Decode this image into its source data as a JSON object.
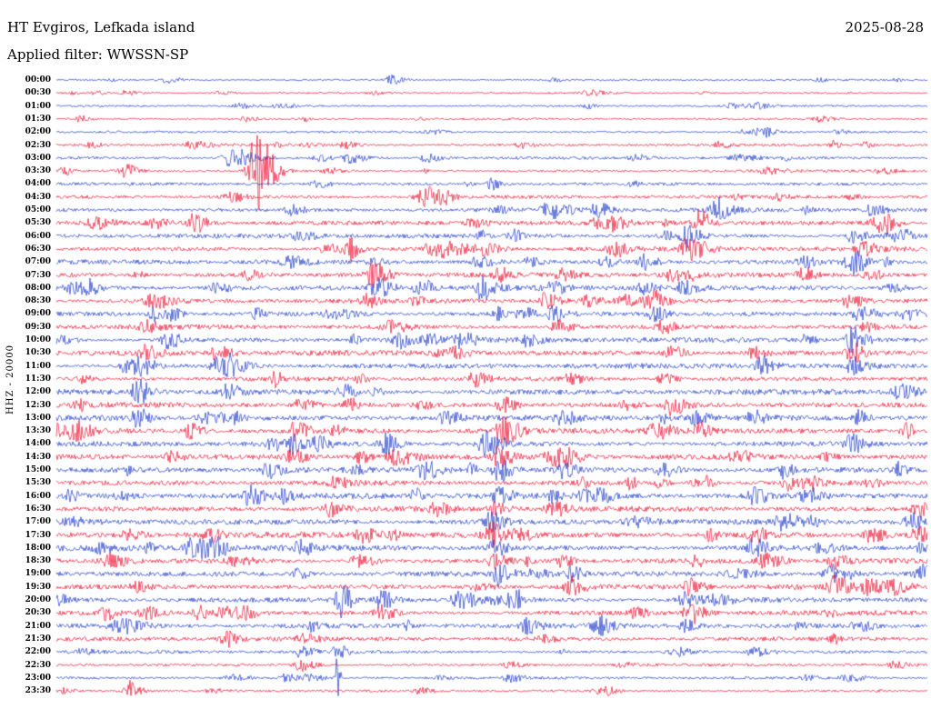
{
  "header": {
    "station": "HT Evgiros, Lefkada island",
    "date": "2025-08-28",
    "filter": "Applied filter: WWSSN-SP"
  },
  "axis": {
    "left_label": "HHZ - 20000"
  },
  "chart_data": {
    "type": "line",
    "subtype": "helicorder-seismogram",
    "title": "HT Evgiros, Lefkada island",
    "date": "2025-08-28",
    "filter": "WWSSN-SP",
    "channel": "HHZ",
    "scale_label": "20000",
    "row_interval_minutes": 30,
    "legend": "alternating blue/red traces, one 30-minute segment per row",
    "colors": {
      "blue": "#1c39cb",
      "red": "#ef0f2f"
    },
    "rows": [
      {
        "t": "00:00",
        "c": "blue",
        "n": 0.7
      },
      {
        "t": "00:30",
        "c": "red",
        "n": 0.7
      },
      {
        "t": "01:00",
        "c": "blue",
        "n": 0.7
      },
      {
        "t": "01:30",
        "c": "red",
        "n": 0.8
      },
      {
        "t": "02:00",
        "c": "blue",
        "n": 0.8
      },
      {
        "t": "02:30",
        "c": "red",
        "n": 0.9
      },
      {
        "t": "03:00",
        "c": "blue",
        "n": 1.0
      },
      {
        "t": "03:30",
        "c": "red",
        "n": 1.0
      },
      {
        "t": "04:00",
        "c": "blue",
        "n": 1.1
      },
      {
        "t": "04:30",
        "c": "red",
        "n": 1.2
      },
      {
        "t": "05:00",
        "c": "blue",
        "n": 1.5
      },
      {
        "t": "05:30",
        "c": "red",
        "n": 1.6
      },
      {
        "t": "06:00",
        "c": "blue",
        "n": 1.6
      },
      {
        "t": "06:30",
        "c": "red",
        "n": 1.7
      },
      {
        "t": "07:00",
        "c": "blue",
        "n": 1.6
      },
      {
        "t": "07:30",
        "c": "red",
        "n": 1.7
      },
      {
        "t": "08:00",
        "c": "blue",
        "n": 1.8
      },
      {
        "t": "08:30",
        "c": "red",
        "n": 1.8
      },
      {
        "t": "09:00",
        "c": "blue",
        "n": 1.8
      },
      {
        "t": "09:30",
        "c": "red",
        "n": 1.7
      },
      {
        "t": "10:00",
        "c": "blue",
        "n": 1.8
      },
      {
        "t": "10:30",
        "c": "red",
        "n": 1.8
      },
      {
        "t": "11:00",
        "c": "blue",
        "n": 1.9
      },
      {
        "t": "11:30",
        "c": "red",
        "n": 1.7
      },
      {
        "t": "12:00",
        "c": "blue",
        "n": 1.9
      },
      {
        "t": "12:30",
        "c": "red",
        "n": 1.9
      },
      {
        "t": "13:00",
        "c": "blue",
        "n": 2.0
      },
      {
        "t": "13:30",
        "c": "red",
        "n": 2.0
      },
      {
        "t": "14:00",
        "c": "blue",
        "n": 2.0
      },
      {
        "t": "14:30",
        "c": "red",
        "n": 2.0
      },
      {
        "t": "15:00",
        "c": "blue",
        "n": 2.0
      },
      {
        "t": "15:30",
        "c": "red",
        "n": 1.9
      },
      {
        "t": "16:00",
        "c": "blue",
        "n": 2.1
      },
      {
        "t": "16:30",
        "c": "red",
        "n": 2.0
      },
      {
        "t": "17:00",
        "c": "blue",
        "n": 2.0
      },
      {
        "t": "17:30",
        "c": "red",
        "n": 2.1
      },
      {
        "t": "18:00",
        "c": "blue",
        "n": 2.1
      },
      {
        "t": "18:30",
        "c": "red",
        "n": 1.9
      },
      {
        "t": "19:00",
        "c": "blue",
        "n": 2.0
      },
      {
        "t": "19:30",
        "c": "red",
        "n": 1.9
      },
      {
        "t": "20:00",
        "c": "blue",
        "n": 1.8
      },
      {
        "t": "20:30",
        "c": "red",
        "n": 1.8
      },
      {
        "t": "21:00",
        "c": "blue",
        "n": 1.7
      },
      {
        "t": "21:30",
        "c": "red",
        "n": 1.5
      },
      {
        "t": "22:00",
        "c": "blue",
        "n": 1.2
      },
      {
        "t": "22:30",
        "c": "red",
        "n": 1.1
      },
      {
        "t": "23:00",
        "c": "blue",
        "n": 1.0
      },
      {
        "t": "23:30",
        "c": "red",
        "n": 0.9
      }
    ],
    "events": [
      {
        "r": 0,
        "x": 0.128,
        "a": 3,
        "w": 8
      },
      {
        "r": 0,
        "x": 0.57,
        "a": 2,
        "w": 6
      },
      {
        "r": 1,
        "x": 0.045,
        "a": 2,
        "w": 5
      },
      {
        "r": 2,
        "x": 0.805,
        "a": 3,
        "w": 8
      },
      {
        "r": 3,
        "x": 0.217,
        "a": 3.5,
        "w": 6
      },
      {
        "r": 4,
        "x": 0.79,
        "a": 2.5,
        "w": 7
      },
      {
        "r": 5,
        "x": 0.04,
        "a": 3,
        "w": 6
      },
      {
        "r": 5,
        "x": 0.33,
        "a": 4,
        "w": 8
      },
      {
        "r": 5,
        "x": 0.534,
        "a": 3,
        "w": 7
      },
      {
        "r": 6,
        "x": 0.198,
        "a": 8,
        "w": 9
      },
      {
        "r": 6,
        "x": 0.336,
        "a": 6,
        "w": 9
      },
      {
        "r": 6,
        "x": 0.425,
        "a": 4.5,
        "w": 8
      },
      {
        "r": 7,
        "x": 0.078,
        "a": 8,
        "w": 7
      },
      {
        "r": 7,
        "x": 0.23,
        "a": 46,
        "w": 10
      },
      {
        "r": 7,
        "x": 0.313,
        "a": 4,
        "w": 7
      },
      {
        "r": 8,
        "x": 0.3,
        "a": 3.5,
        "w": 8
      },
      {
        "r": 8,
        "x": 0.5,
        "a": 3,
        "w": 7
      },
      {
        "r": 8,
        "x": 0.66,
        "a": 3,
        "w": 6
      },
      {
        "r": 9,
        "x": 0.425,
        "a": 6,
        "w": 8
      },
      {
        "r": 9,
        "x": 0.446,
        "a": 7,
        "w": 6
      },
      {
        "r": 9,
        "x": 0.83,
        "a": 4,
        "w": 8
      },
      {
        "r": 10,
        "x": 0.27,
        "a": 5,
        "w": 8
      },
      {
        "r": 10,
        "x": 0.565,
        "a": 10,
        "w": 8
      },
      {
        "r": 10,
        "x": 0.62,
        "a": 8,
        "w": 9
      },
      {
        "r": 10,
        "x": 0.758,
        "a": 12,
        "w": 8
      },
      {
        "r": 10,
        "x": 0.935,
        "a": 6,
        "w": 8
      },
      {
        "r": 11,
        "x": 0.16,
        "a": 8,
        "w": 8
      },
      {
        "r": 11,
        "x": 0.477,
        "a": 7,
        "w": 8
      },
      {
        "r": 11,
        "x": 0.62,
        "a": 6,
        "w": 8
      },
      {
        "r": 11,
        "x": 0.737,
        "a": 14,
        "w": 8
      },
      {
        "r": 11,
        "x": 0.95,
        "a": 8,
        "w": 8
      },
      {
        "r": 12,
        "x": 0.28,
        "a": 6,
        "w": 8
      },
      {
        "r": 12,
        "x": 0.724,
        "a": 12,
        "w": 8
      },
      {
        "r": 12,
        "x": 0.914,
        "a": 7,
        "w": 8
      },
      {
        "r": 12,
        "x": 0.97,
        "a": 6,
        "w": 7
      },
      {
        "r": 13,
        "x": 0.336,
        "a": 8,
        "w": 8
      },
      {
        "r": 13,
        "x": 0.446,
        "a": 6,
        "w": 8
      },
      {
        "r": 13,
        "x": 0.64,
        "a": 8,
        "w": 8
      },
      {
        "r": 13,
        "x": 0.727,
        "a": 16,
        "w": 9
      },
      {
        "r": 13,
        "x": 0.925,
        "a": 8,
        "w": 8
      },
      {
        "r": 14,
        "x": 0.54,
        "a": 5,
        "w": 8
      },
      {
        "r": 14,
        "x": 0.675,
        "a": 8,
        "w": 8
      },
      {
        "r": 14,
        "x": 0.857,
        "a": 6,
        "w": 8
      },
      {
        "r": 14,
        "x": 0.914,
        "a": 8,
        "w": 8
      },
      {
        "r": 15,
        "x": 0.363,
        "a": 14,
        "w": 9
      },
      {
        "r": 15,
        "x": 0.58,
        "a": 6,
        "w": 8
      },
      {
        "r": 15,
        "x": 0.857,
        "a": 7,
        "w": 8
      },
      {
        "r": 16,
        "x": 0.368,
        "a": 12,
        "w": 9
      },
      {
        "r": 16,
        "x": 0.415,
        "a": 6,
        "w": 7
      },
      {
        "r": 16,
        "x": 0.493,
        "a": 7,
        "w": 8
      },
      {
        "r": 16,
        "x": 0.57,
        "a": 6,
        "w": 8
      },
      {
        "r": 16,
        "x": 0.675,
        "a": 7,
        "w": 8
      },
      {
        "r": 16,
        "x": 0.72,
        "a": 8,
        "w": 8
      },
      {
        "r": 17,
        "x": 0.107,
        "a": 7,
        "w": 8
      },
      {
        "r": 17,
        "x": 0.56,
        "a": 8,
        "w": 8
      },
      {
        "r": 17,
        "x": 0.685,
        "a": 10,
        "w": 8
      },
      {
        "r": 17,
        "x": 0.91,
        "a": 6,
        "w": 8
      },
      {
        "r": 18,
        "x": 0.112,
        "a": 8,
        "w": 7
      },
      {
        "r": 18,
        "x": 0.133,
        "a": 7,
        "w": 6
      },
      {
        "r": 18,
        "x": 0.534,
        "a": 6,
        "w": 8
      },
      {
        "r": 18,
        "x": 0.57,
        "a": 7,
        "w": 8
      },
      {
        "r": 18,
        "x": 0.685,
        "a": 8,
        "w": 8
      },
      {
        "r": 19,
        "x": 0.102,
        "a": 6,
        "w": 8
      },
      {
        "r": 19,
        "x": 0.576,
        "a": 8,
        "w": 8
      },
      {
        "r": 19,
        "x": 0.696,
        "a": 7,
        "w": 8
      },
      {
        "r": 20,
        "x": 0.128,
        "a": 9,
        "w": 8
      },
      {
        "r": 20,
        "x": 0.394,
        "a": 8,
        "w": 8
      },
      {
        "r": 20,
        "x": 0.425,
        "a": 7,
        "w": 7
      },
      {
        "r": 20,
        "x": 0.54,
        "a": 6,
        "w": 8
      },
      {
        "r": 20,
        "x": 0.914,
        "a": 14,
        "w": 8
      },
      {
        "r": 21,
        "x": 0.102,
        "a": 7,
        "w": 8
      },
      {
        "r": 21,
        "x": 0.185,
        "a": 8,
        "w": 8
      },
      {
        "r": 21,
        "x": 0.706,
        "a": 7,
        "w": 8
      },
      {
        "r": 21,
        "x": 0.8,
        "a": 6,
        "w": 8
      },
      {
        "r": 21,
        "x": 0.914,
        "a": 10,
        "w": 8
      },
      {
        "r": 22,
        "x": 0.097,
        "a": 12,
        "w": 8
      },
      {
        "r": 22,
        "x": 0.185,
        "a": 10,
        "w": 8
      },
      {
        "r": 22,
        "x": 0.81,
        "a": 10,
        "w": 8
      },
      {
        "r": 22,
        "x": 0.914,
        "a": 8,
        "w": 8
      },
      {
        "r": 23,
        "x": 0.029,
        "a": 4,
        "w": 6
      },
      {
        "r": 23,
        "x": 0.59,
        "a": 6,
        "w": 8
      },
      {
        "r": 23,
        "x": 0.696,
        "a": 5,
        "w": 8
      },
      {
        "r": 24,
        "x": 0.092,
        "a": 14,
        "w": 8
      },
      {
        "r": 24,
        "x": 0.196,
        "a": 8,
        "w": 8
      },
      {
        "r": 24,
        "x": 0.33,
        "a": 7,
        "w": 8
      },
      {
        "r": 25,
        "x": 0.024,
        "a": 6,
        "w": 6
      },
      {
        "r": 25,
        "x": 0.28,
        "a": 6,
        "w": 8
      },
      {
        "r": 25,
        "x": 0.513,
        "a": 8,
        "w": 8
      },
      {
        "r": 25,
        "x": 0.706,
        "a": 10,
        "w": 8
      },
      {
        "r": 26,
        "x": 0.092,
        "a": 10,
        "w": 8
      },
      {
        "r": 26,
        "x": 0.446,
        "a": 8,
        "w": 8
      },
      {
        "r": 26,
        "x": 0.58,
        "a": 7,
        "w": 8
      },
      {
        "r": 26,
        "x": 0.732,
        "a": 6,
        "w": 8
      },
      {
        "r": 27,
        "x": 0.154,
        "a": 8,
        "w": 8
      },
      {
        "r": 27,
        "x": 0.274,
        "a": 10,
        "w": 8
      },
      {
        "r": 27,
        "x": 0.513,
        "a": 14,
        "w": 9
      },
      {
        "r": 27,
        "x": 0.737,
        "a": 8,
        "w": 8
      },
      {
        "r": 28,
        "x": 0.269,
        "a": 10,
        "w": 8
      },
      {
        "r": 28,
        "x": 0.3,
        "a": 8,
        "w": 7
      },
      {
        "r": 28,
        "x": 0.498,
        "a": 6,
        "w": 8
      },
      {
        "r": 29,
        "x": 0.269,
        "a": 8,
        "w": 8
      },
      {
        "r": 29,
        "x": 0.508,
        "a": 10,
        "w": 8
      },
      {
        "r": 29,
        "x": 0.78,
        "a": 8,
        "w": 8
      },
      {
        "r": 29,
        "x": 0.883,
        "a": 4,
        "w": 7
      },
      {
        "r": 30,
        "x": 0.243,
        "a": 8,
        "w": 8
      },
      {
        "r": 30,
        "x": 0.508,
        "a": 12,
        "w": 8
      },
      {
        "r": 30,
        "x": 0.58,
        "a": 8,
        "w": 8
      },
      {
        "r": 30,
        "x": 0.696,
        "a": 7,
        "w": 8
      },
      {
        "r": 31,
        "x": 0.32,
        "a": 6,
        "w": 8
      },
      {
        "r": 31,
        "x": 0.862,
        "a": 8,
        "w": 8
      },
      {
        "r": 31,
        "x": 0.935,
        "a": 5,
        "w": 7
      },
      {
        "r": 32,
        "x": 0.222,
        "a": 10,
        "w": 8
      },
      {
        "r": 32,
        "x": 0.258,
        "a": 7,
        "w": 7
      },
      {
        "r": 32,
        "x": 0.508,
        "a": 8,
        "w": 8
      },
      {
        "r": 32,
        "x": 0.623,
        "a": 7,
        "w": 8
      },
      {
        "r": 32,
        "x": 0.8,
        "a": 10,
        "w": 8
      },
      {
        "r": 32,
        "x": 0.862,
        "a": 8,
        "w": 8
      },
      {
        "r": 33,
        "x": 0.315,
        "a": 8,
        "w": 8
      },
      {
        "r": 33,
        "x": 0.503,
        "a": 7,
        "w": 8
      },
      {
        "r": 33,
        "x": 0.57,
        "a": 8,
        "w": 8
      },
      {
        "r": 34,
        "x": 0.498,
        "a": 10,
        "w": 8
      },
      {
        "r": 34,
        "x": 0.84,
        "a": 8,
        "w": 8
      },
      {
        "r": 34,
        "x": 0.982,
        "a": 10,
        "w": 8
      },
      {
        "r": 35,
        "x": 0.175,
        "a": 6,
        "w": 8
      },
      {
        "r": 35,
        "x": 0.498,
        "a": 12,
        "w": 8
      },
      {
        "r": 35,
        "x": 0.8,
        "a": 10,
        "w": 8
      },
      {
        "r": 35,
        "x": 0.935,
        "a": 8,
        "w": 8
      },
      {
        "r": 35,
        "x": 0.988,
        "a": 8,
        "w": 7
      },
      {
        "r": 36,
        "x": 0.05,
        "a": 5,
        "w": 7
      },
      {
        "r": 36,
        "x": 0.154,
        "a": 10,
        "w": 8
      },
      {
        "r": 36,
        "x": 0.185,
        "a": 8,
        "w": 7
      },
      {
        "r": 36,
        "x": 0.28,
        "a": 7,
        "w": 8
      },
      {
        "r": 36,
        "x": 0.503,
        "a": 8,
        "w": 8
      },
      {
        "r": 36,
        "x": 0.8,
        "a": 10,
        "w": 8
      },
      {
        "r": 36,
        "x": 0.878,
        "a": 6,
        "w": 8
      },
      {
        "r": 37,
        "x": 0.503,
        "a": 8,
        "w": 8
      },
      {
        "r": 37,
        "x": 0.58,
        "a": 6,
        "w": 8
      },
      {
        "r": 37,
        "x": 0.893,
        "a": 8,
        "w": 8
      },
      {
        "r": 38,
        "x": 0.508,
        "a": 12,
        "w": 8
      },
      {
        "r": 38,
        "x": 0.59,
        "a": 8,
        "w": 8
      },
      {
        "r": 38,
        "x": 0.888,
        "a": 10,
        "w": 8
      },
      {
        "r": 39,
        "x": 0.092,
        "a": 5,
        "w": 7
      },
      {
        "r": 39,
        "x": 0.59,
        "a": 10,
        "w": 8
      },
      {
        "r": 39,
        "x": 0.727,
        "a": 8,
        "w": 8
      },
      {
        "r": 39,
        "x": 0.893,
        "a": 10,
        "w": 8
      },
      {
        "r": 40,
        "x": 0.326,
        "a": 18,
        "w": 6
      },
      {
        "r": 40,
        "x": 0.373,
        "a": 10,
        "w": 8
      },
      {
        "r": 40,
        "x": 0.52,
        "a": 6,
        "w": 8
      },
      {
        "r": 40,
        "x": 0.72,
        "a": 8,
        "w": 8
      },
      {
        "r": 41,
        "x": 0.102,
        "a": 6,
        "w": 8
      },
      {
        "r": 41,
        "x": 0.19,
        "a": 7,
        "w": 8
      },
      {
        "r": 41,
        "x": 0.373,
        "a": 8,
        "w": 8
      },
      {
        "r": 41,
        "x": 0.732,
        "a": 10,
        "w": 8
      },
      {
        "r": 42,
        "x": 0.54,
        "a": 8,
        "w": 8
      },
      {
        "r": 42,
        "x": 0.623,
        "a": 10,
        "w": 8
      },
      {
        "r": 42,
        "x": 0.72,
        "a": 6,
        "w": 8
      },
      {
        "r": 43,
        "x": 0.196,
        "a": 8,
        "w": 8
      },
      {
        "r": 43,
        "x": 0.56,
        "a": 4,
        "w": 7
      },
      {
        "r": 44,
        "x": 0.03,
        "a": 4,
        "w": 6
      },
      {
        "r": 44,
        "x": 0.28,
        "a": 6,
        "w": 8
      },
      {
        "r": 44,
        "x": 0.322,
        "a": 8,
        "w": 6
      },
      {
        "r": 45,
        "x": 0.28,
        "a": 8,
        "w": 8
      },
      {
        "r": 45,
        "x": 0.52,
        "a": 4,
        "w": 7
      },
      {
        "r": 46,
        "x": 0.322,
        "a": 28,
        "w": 1.8
      },
      {
        "r": 46,
        "x": 0.52,
        "a": 5,
        "w": 7
      },
      {
        "r": 47,
        "x": 0.084,
        "a": 12,
        "w": 6
      }
    ]
  }
}
